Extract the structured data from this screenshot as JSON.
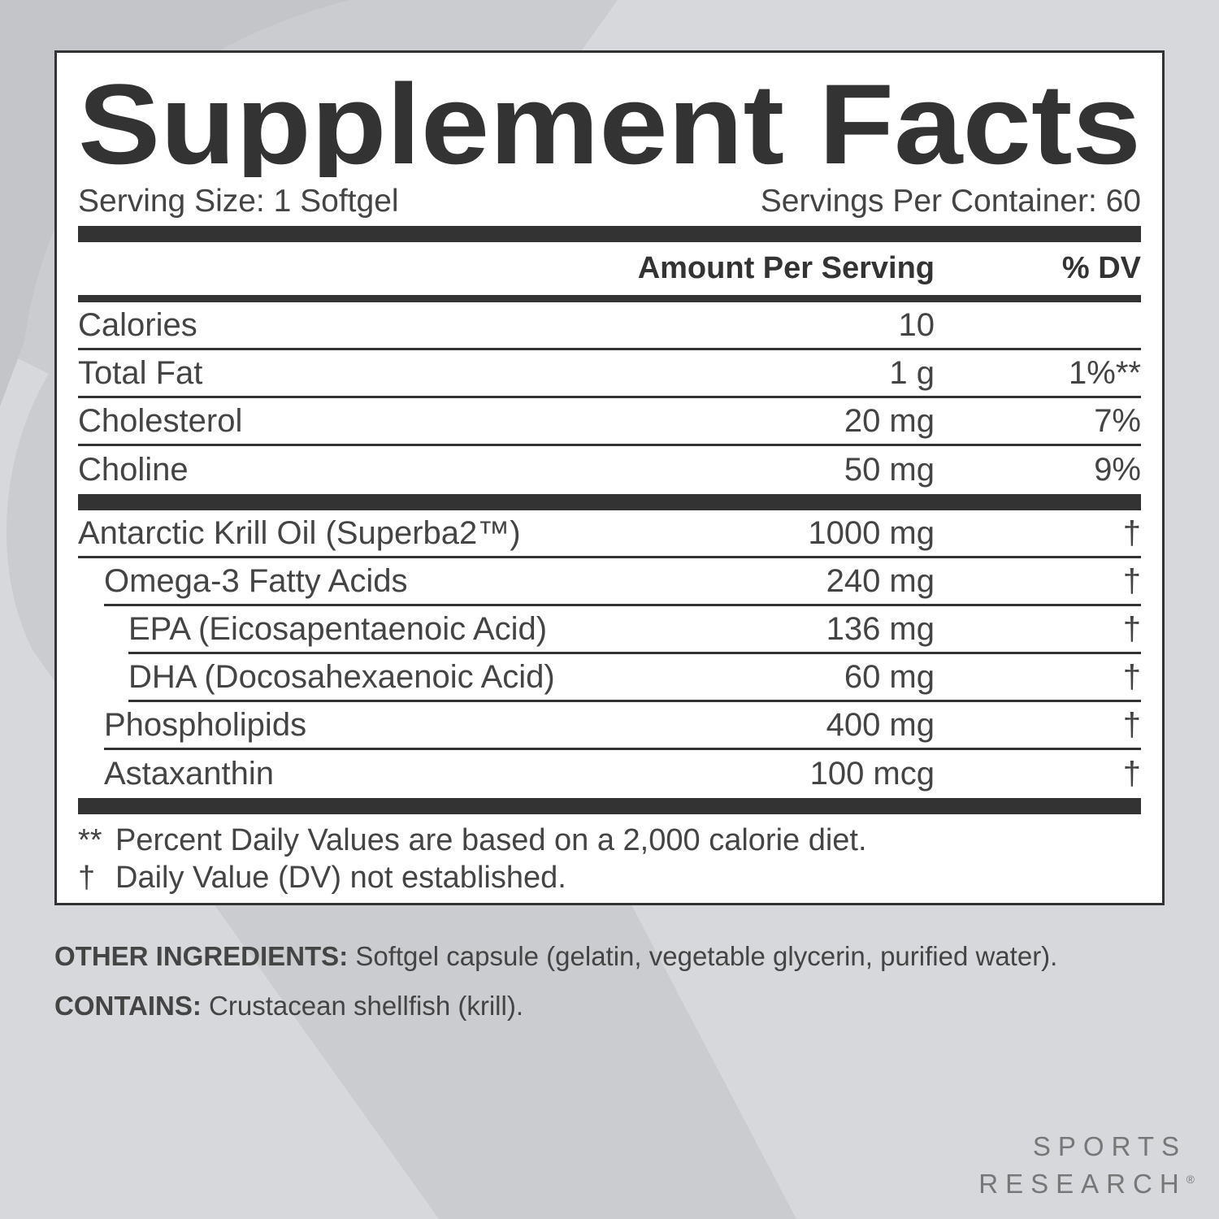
{
  "title": "Supplement Facts",
  "serving_size": "Serving Size: 1 Softgel",
  "servings_per_container": "Servings Per Container: 60",
  "columns": {
    "amount": "Amount Per Serving",
    "dv": "% DV"
  },
  "nutrients": [
    {
      "name": "Calories",
      "amount": "10"
    },
    {
      "name": "Total Fat",
      "amount": "1 g",
      "dv": "1%**"
    },
    {
      "name": "Cholesterol",
      "amount": "20 mg",
      "dv": "7%"
    },
    {
      "name": "Choline",
      "amount": "50 mg",
      "dv": "9%"
    }
  ],
  "ingredients": [
    {
      "name": "Antarctic Krill Oil (Superba2™)",
      "amount": "1000 mg",
      "dv": "†",
      "parts": [
        {
          "name": "Omega-3 Fatty Acids",
          "amount": "240 mg",
          "dv": "†",
          "parts": [
            {
              "name": "EPA (Eicosapentaenoic Acid)",
              "amount": "136 mg",
              "dv": "†"
            },
            {
              "name": "DHA (Docosahexaenoic Acid)",
              "amount": "60 mg",
              "dv": "†"
            }
          ]
        },
        {
          "name": "Phospholipids",
          "amount": "400 mg",
          "dv": "†"
        },
        {
          "name": "Astaxanthin",
          "amount": "100 mcg",
          "dv": "†"
        }
      ]
    }
  ],
  "footnotes": [
    {
      "mark": "**",
      "text": "Percent Daily Values are based on a 2,000 calorie diet."
    },
    {
      "mark": "†",
      "text": "Daily Value (DV) not established."
    }
  ],
  "other_ingredients": {
    "label": "OTHER INGREDIENTS:",
    "text": "Softgel capsule (gelatin, vegetable glycerin, purified water)."
  },
  "contains": {
    "label": "CONTAINS:",
    "text": "Crustacean shellfish (krill)."
  },
  "brand": {
    "line1": "SPORTS",
    "line2": "RESEARCH",
    "mark": "®"
  }
}
